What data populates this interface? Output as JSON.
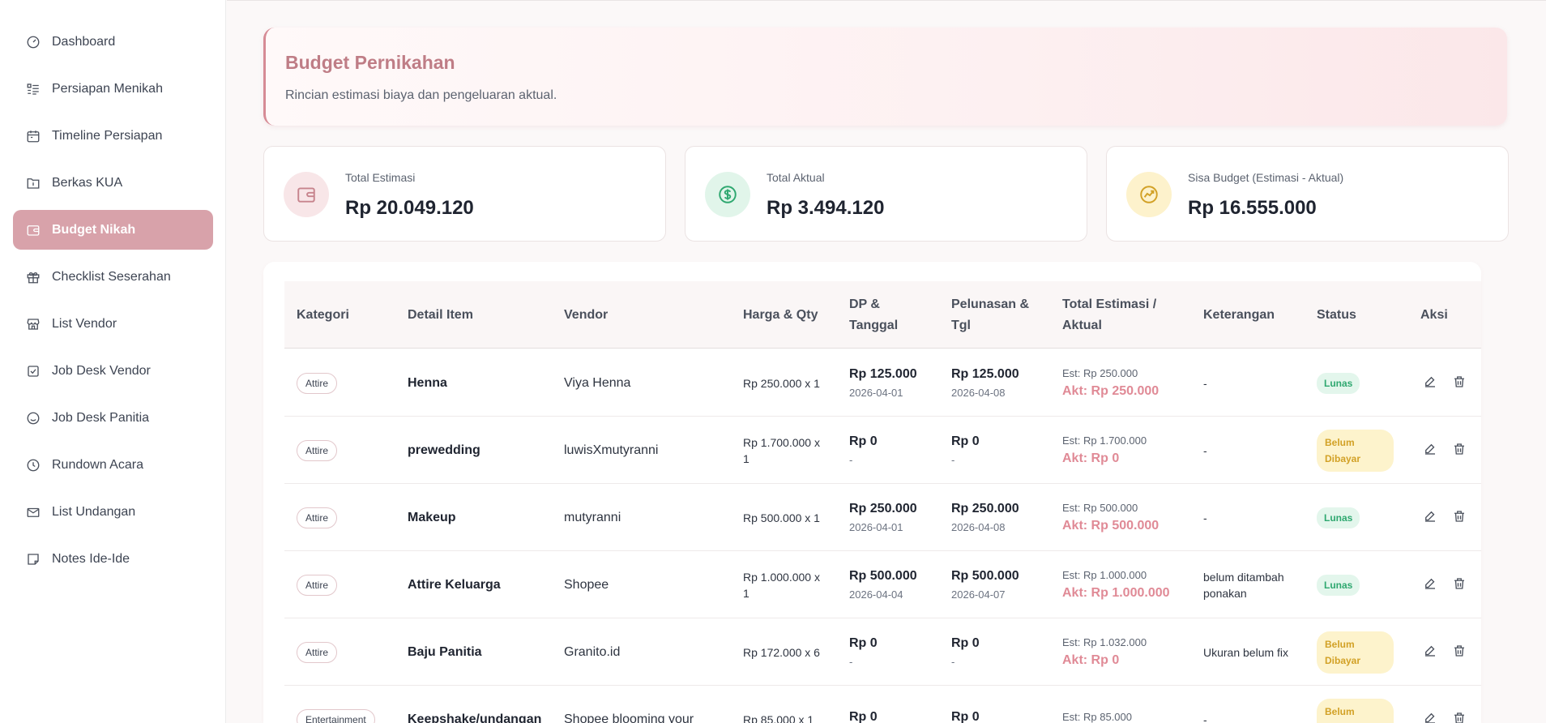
{
  "sidebar": {
    "items": [
      {
        "label": "Dashboard",
        "icon": "gauge-icon",
        "active": false
      },
      {
        "label": "Persiapan Menikah",
        "icon": "list-checks-icon",
        "active": false
      },
      {
        "label": "Timeline Persiapan",
        "icon": "calendar-icon",
        "active": false
      },
      {
        "label": "Berkas KUA",
        "icon": "folder-info-icon",
        "active": false
      },
      {
        "label": "Budget Nikah",
        "icon": "wallet-icon",
        "active": true
      },
      {
        "label": "Checklist Seserahan",
        "icon": "gift-icon",
        "active": false
      },
      {
        "label": "List Vendor",
        "icon": "store-icon",
        "active": false
      },
      {
        "label": "Job Desk Vendor",
        "icon": "checkbox-icon",
        "active": false
      },
      {
        "label": "Job Desk Panitia",
        "icon": "smile-icon",
        "active": false
      },
      {
        "label": "Rundown Acara",
        "icon": "clock-icon",
        "active": false
      },
      {
        "label": "List Undangan",
        "icon": "mail-icon",
        "active": false
      },
      {
        "label": "Notes Ide-Ide",
        "icon": "note-icon",
        "active": false
      }
    ]
  },
  "header": {
    "title": "Budget Pernikahan",
    "subtitle": "Rincian estimasi biaya dan pengeluaran aktual."
  },
  "summary": {
    "estimasi": {
      "label": "Total Estimasi",
      "value": "Rp 20.049.120",
      "icon": "wallet-icon",
      "color": "#c7848d",
      "bg": "#f8e6e8"
    },
    "aktual": {
      "label": "Total Aktual",
      "value": "Rp 3.494.120",
      "icon": "dollar-circle-icon",
      "color": "#2fa870",
      "bg": "#e1f5ea"
    },
    "sisa": {
      "label": "Sisa Budget (Estimasi - Aktual)",
      "value": "Rp 16.555.000",
      "icon": "trend-icon",
      "color": "#d2a126",
      "bg": "#fdf2cc"
    }
  },
  "table": {
    "headers": {
      "kategori": "Kategori",
      "detail": "Detail Item",
      "vendor": "Vendor",
      "harga": "Harga & Qty",
      "dp": "DP & Tanggal",
      "pelunasan": "Pelunasan & Tgl",
      "total": "Total Estimasi / Aktual",
      "keterangan": "Keterangan",
      "status": "Status",
      "aksi": "Aksi"
    },
    "rows": [
      {
        "kategori": "Attire",
        "detail": "Henna",
        "vendor": "Viya Henna",
        "harga": "Rp 250.000 x 1",
        "dp": "Rp 125.000",
        "dp_date": "2026-04-01",
        "pel": "Rp 125.000",
        "pel_date": "2026-04-08",
        "est": "Est: Rp 250.000",
        "akt": "Akt: Rp 250.000",
        "ket": "-",
        "status": "Lunas"
      },
      {
        "kategori": "Attire",
        "detail": "prewedding",
        "vendor": "luwisXmutyranni",
        "harga": "Rp 1.700.000 x 1",
        "dp": "Rp 0",
        "dp_date": "-",
        "pel": "Rp 0",
        "pel_date": "-",
        "est": "Est: Rp 1.700.000",
        "akt": "Akt: Rp 0",
        "ket": "-",
        "status": "Belum Dibayar"
      },
      {
        "kategori": "Attire",
        "detail": "Makeup",
        "vendor": "mutyranni",
        "harga": "Rp 500.000 x 1",
        "dp": "Rp 250.000",
        "dp_date": "2026-04-01",
        "pel": "Rp 250.000",
        "pel_date": "2026-04-08",
        "est": "Est: Rp 500.000",
        "akt": "Akt: Rp 500.000",
        "ket": "-",
        "status": "Lunas"
      },
      {
        "kategori": "Attire",
        "detail": "Attire Keluarga",
        "vendor": "Shopee",
        "harga": "Rp 1.000.000 x 1",
        "dp": "Rp 500.000",
        "dp_date": "2026-04-04",
        "pel": "Rp 500.000",
        "pel_date": "2026-04-07",
        "est": "Est: Rp 1.000.000",
        "akt": "Akt: Rp 1.000.000",
        "ket": "belum ditambah ponakan",
        "status": "Lunas"
      },
      {
        "kategori": "Attire",
        "detail": "Baju Panitia",
        "vendor": "Granito.id",
        "harga": "Rp 172.000 x 6",
        "dp": "Rp 0",
        "dp_date": "-",
        "pel": "Rp 0",
        "pel_date": "-",
        "est": "Est: Rp 1.032.000",
        "akt": "Akt: Rp 0",
        "ket": "Ukuran belum fix",
        "status": "Belum Dibayar"
      },
      {
        "kategori": "Entertainment",
        "detail": "Keepshake/undangan",
        "vendor": "Shopee blooming your",
        "harga": "Rp 85.000 x 1",
        "dp": "Rp 0",
        "dp_date": "",
        "pel": "Rp 0",
        "pel_date": "",
        "est": "Est: Rp 85.000",
        "akt": "",
        "ket": "-",
        "status": "Belum Dibayar"
      }
    ]
  }
}
